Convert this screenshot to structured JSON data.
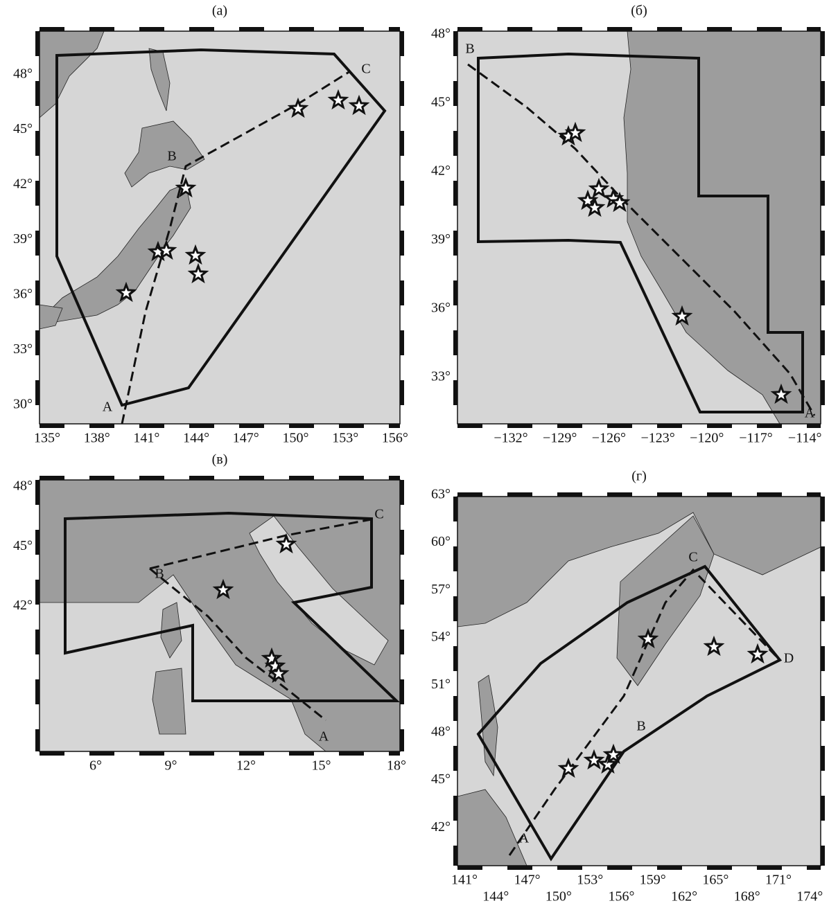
{
  "panels": [
    {
      "title": "(a)",
      "xticks": [
        "135°",
        "138°",
        "141°",
        "144°",
        "147°",
        "150°",
        "153°",
        "156°"
      ],
      "yticks": [
        "48°",
        "45°",
        "42°",
        "39°",
        "36°",
        "33°",
        "30°"
      ],
      "labels": [
        "A",
        "B",
        "C"
      ]
    },
    {
      "title": "(б)",
      "xticks": [
        "−132°",
        "−129°",
        "−126°",
        "−123°",
        "−120°",
        "−117°",
        "−114°"
      ],
      "yticks": [
        "48°",
        "45°",
        "42°",
        "39°",
        "36°",
        "33°"
      ],
      "labels": [
        "A",
        "B"
      ]
    },
    {
      "title": "(в)",
      "xticks": [
        "6°",
        "9°",
        "12°",
        "15°",
        "18°"
      ],
      "yticks": [
        "48°",
        "45°",
        "42°"
      ],
      "labels": [
        "A",
        "B",
        "C"
      ]
    },
    {
      "title": "(г)",
      "xticks": [
        "141°",
        "144°",
        "147°",
        "150°",
        "153°",
        "156°",
        "159°",
        "162°",
        "165°",
        "168°",
        "171°",
        "174°"
      ],
      "yticks": [
        "63°",
        "60°",
        "57°",
        "54°",
        "51°",
        "48°",
        "45°",
        "42°"
      ],
      "labels": [
        "A",
        "B",
        "C",
        "D"
      ]
    }
  ]
}
